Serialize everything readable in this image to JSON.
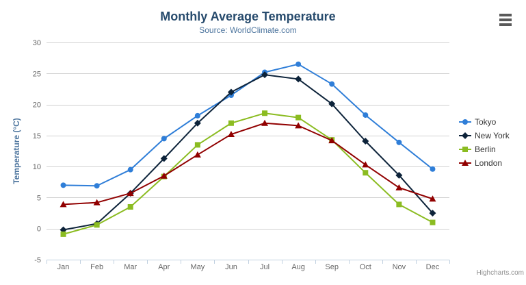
{
  "chart_data": {
    "type": "line",
    "title": "Monthly Average Temperature",
    "subtitle": "Source: WorldClimate.com",
    "categories": [
      "Jan",
      "Feb",
      "Mar",
      "Apr",
      "May",
      "Jun",
      "Jul",
      "Aug",
      "Sep",
      "Oct",
      "Nov",
      "Dec"
    ],
    "series": [
      {
        "name": "Tokyo",
        "color": "#2f7ed8",
        "marker": "circle",
        "values": [
          7.0,
          6.9,
          9.5,
          14.5,
          18.2,
          21.5,
          25.2,
          26.5,
          23.3,
          18.3,
          13.9,
          9.6
        ]
      },
      {
        "name": "New York",
        "color": "#0d233a",
        "marker": "diamond",
        "values": [
          -0.2,
          0.8,
          5.7,
          11.3,
          17.0,
          22.0,
          24.8,
          24.1,
          20.1,
          14.1,
          8.6,
          2.5
        ]
      },
      {
        "name": "Berlin",
        "color": "#8bbc21",
        "marker": "square",
        "values": [
          -0.9,
          0.6,
          3.5,
          8.4,
          13.5,
          17.0,
          18.6,
          17.9,
          14.3,
          9.0,
          3.9,
          1.0
        ]
      },
      {
        "name": "London",
        "color": "#910000",
        "marker": "triangle",
        "values": [
          3.9,
          4.2,
          5.7,
          8.5,
          11.9,
          15.2,
          17.0,
          16.6,
          14.2,
          10.3,
          6.6,
          4.8
        ]
      }
    ],
    "xlabel": "",
    "ylabel": "Temperature (°C)",
    "ylim": [
      -5,
      30
    ],
    "ytick_interval": 5,
    "yticks": [
      -5,
      0,
      5,
      10,
      15,
      20,
      25,
      30
    ],
    "grid": "horizontal",
    "legend_position": "right",
    "credits": "Highcharts.com",
    "icons": {
      "export_menu": "hamburger-icon"
    },
    "colors": {
      "title": "#274b6d",
      "subtitle": "#4d759e",
      "axis_title": "#4d759e",
      "axis_labels": "#666666",
      "grid_line": "#d0d0d0",
      "axis_line": "#c0d0e0",
      "legend_text": "#333333",
      "credits_text": "#909090",
      "export_icon": "#595959"
    }
  }
}
